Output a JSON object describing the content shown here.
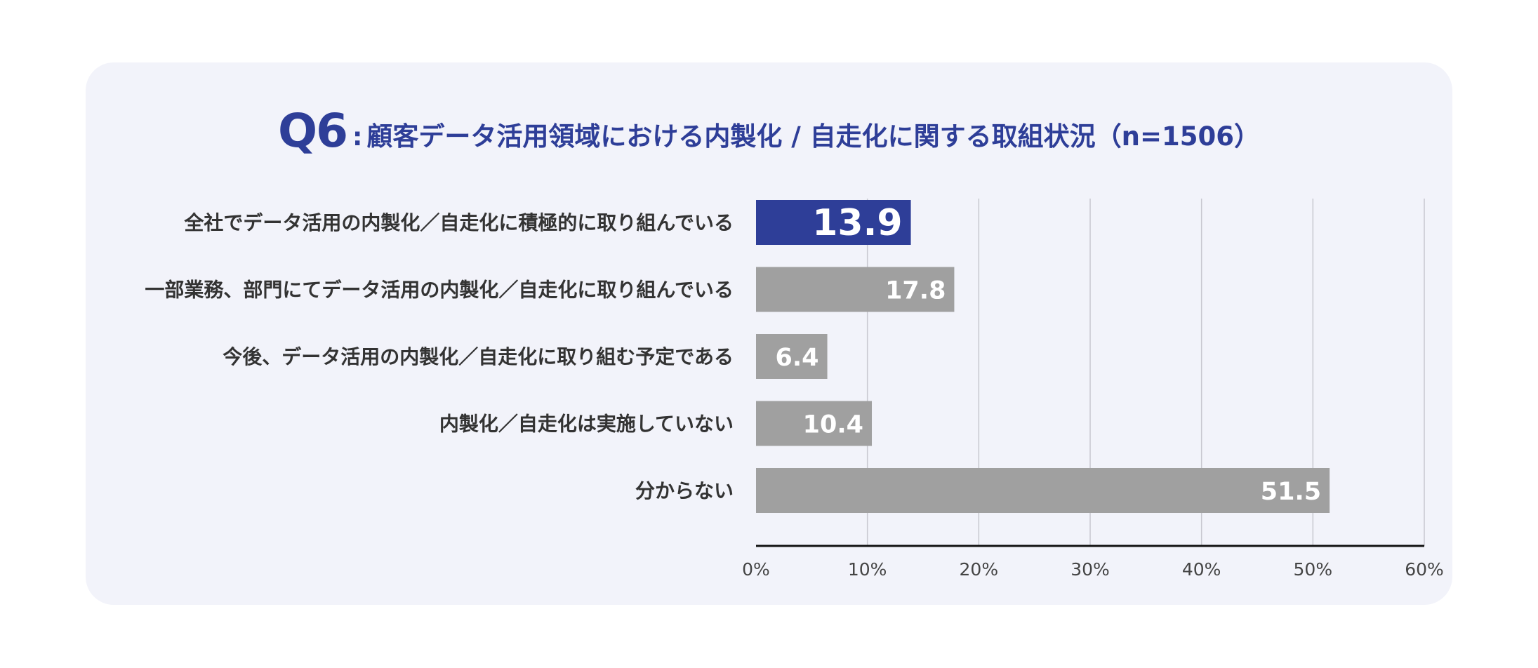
{
  "title": {
    "q": "Q6",
    "sep": ":",
    "text": "顧客データ活用領域における内製化 / 自走化に関する取組状況",
    "n": "（n=1506）"
  },
  "colors": {
    "highlight": "#2e3e98",
    "normal": "#a0a0a0",
    "panel": "#f2f3fa"
  },
  "chart_data": {
    "type": "bar",
    "orientation": "horizontal",
    "categories": [
      "全社でデータ活用の内製化／自走化に積極的に取り組んでいる",
      "一部業務、部門にてデータ活用の内製化／自走化に取り組んでいる",
      "今後、データ活用の内製化／自走化に取り組む予定である",
      "内製化／自走化は実施していない",
      "分からない"
    ],
    "values": [
      13.9,
      17.8,
      6.4,
      10.4,
      51.5
    ],
    "highlight_index": 0,
    "xlim": [
      0,
      60
    ],
    "xticks": [
      0,
      10,
      20,
      30,
      40,
      50,
      60
    ],
    "xtick_labels": [
      "0%",
      "10%",
      "20%",
      "30%",
      "40%",
      "50%",
      "60%"
    ],
    "grid": "vertical",
    "legend": "none"
  }
}
